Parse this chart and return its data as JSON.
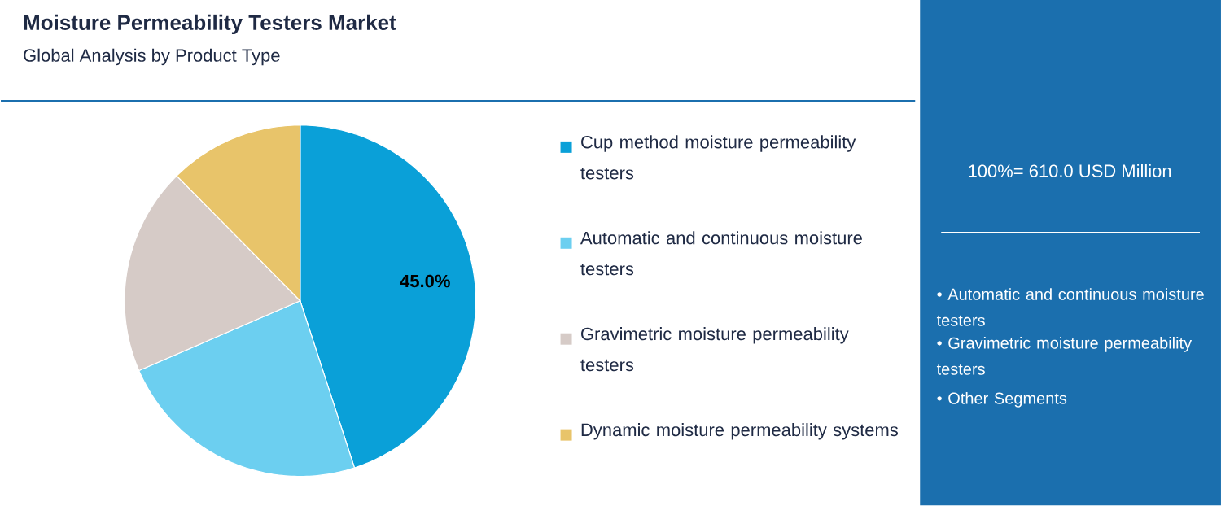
{
  "chart_data": {
    "type": "pie",
    "title": "Moisture Permeability Testers Market",
    "subtitle": "Global Analysis by Product Type",
    "categories": [
      "Cup method moisture permeability testers",
      "Automatic and continuous moisture testers",
      "Gravimetric moisture permeability testers",
      "Dynamic moisture permeability systems"
    ],
    "values": [
      45.0,
      23.5,
      19.1,
      12.4
    ],
    "colors": [
      "#0aa0d8",
      "#6ccff0",
      "#d6cbc7",
      "#e8c46a"
    ],
    "value_labels": [
      "45.0%",
      null,
      null,
      null
    ],
    "legend": "right",
    "annotations": [
      "100%= 610.0 USD Million",
      "• Automatic and continuous moisture testers",
      "• Gravimetric moisture permeability testers",
      "• Other Segments"
    ]
  }
}
